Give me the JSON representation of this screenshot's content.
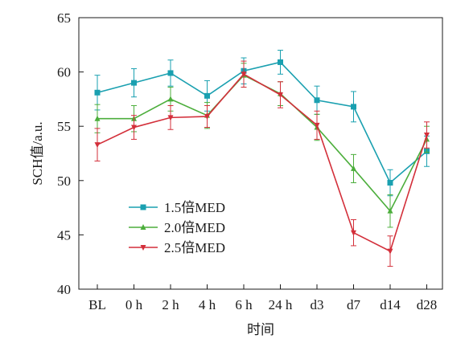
{
  "chart_data": {
    "type": "line",
    "title": "",
    "xlabel": "时间",
    "ylabel": "SCH值/a.u.",
    "categories": [
      "BL",
      "0 h",
      "2 h",
      "4 h",
      "6 h",
      "24 h",
      "d3",
      "d7",
      "d14",
      "d28"
    ],
    "ylim": [
      40,
      65
    ],
    "yticks": [
      40,
      45,
      50,
      55,
      60,
      65
    ],
    "grid": false,
    "legend_position": "lower-left",
    "series": [
      {
        "name": "1.5倍MED",
        "color": "#1aa0b0",
        "marker": "square",
        "values": [
          58.1,
          59.0,
          59.9,
          57.8,
          60.1,
          60.9,
          57.4,
          56.8,
          49.8,
          52.7
        ],
        "errors": [
          1.6,
          1.3,
          1.2,
          1.4,
          1.2,
          1.1,
          1.3,
          1.4,
          1.2,
          1.4
        ]
      },
      {
        "name": "2.0倍MED",
        "color": "#4cae3c",
        "marker": "triangle-up",
        "values": [
          55.7,
          55.7,
          57.5,
          56.0,
          59.7,
          58.0,
          54.9,
          51.1,
          47.2,
          53.8
        ],
        "errors": [
          1.3,
          1.2,
          1.1,
          1.2,
          1.1,
          1.1,
          1.2,
          1.3,
          1.5,
          1.2
        ]
      },
      {
        "name": "2.5倍MED",
        "color": "#d32f3a",
        "marker": "triangle-down",
        "values": [
          53.3,
          54.9,
          55.8,
          55.9,
          59.8,
          57.9,
          55.1,
          45.2,
          43.5,
          54.2
        ],
        "errors": [
          1.5,
          1.1,
          1.1,
          1.0,
          1.2,
          1.2,
          1.3,
          1.2,
          1.4,
          1.2
        ]
      }
    ]
  }
}
